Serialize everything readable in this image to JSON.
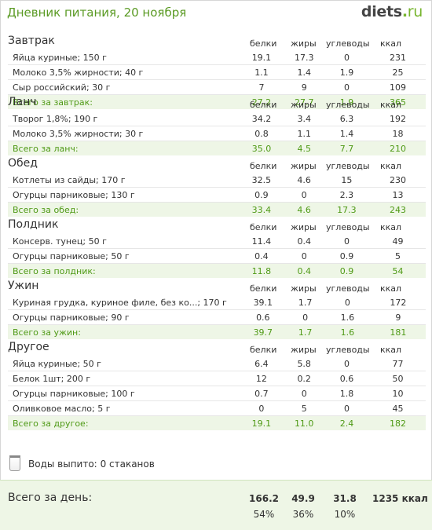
{
  "header": {
    "title": "Дневник питания, 20 ноября",
    "logo_name": "diets",
    "logo_dot": ".",
    "logo_tld": "ru"
  },
  "columns": [
    "белки",
    "жиры",
    "углеводы",
    "ккал"
  ],
  "meals": [
    {
      "title": "Завтрак",
      "items": [
        {
          "name": "Яйца куриные; 150 г",
          "protein": "19.1",
          "fat": "17.3",
          "carbs": "0",
          "kcal": "231"
        },
        {
          "name": "Молоко 3,5% жирности; 40 г",
          "protein": "1.1",
          "fat": "1.4",
          "carbs": "1.9",
          "kcal": "25"
        },
        {
          "name": "Сыр российский; 30 г",
          "protein": "7",
          "fat": "9",
          "carbs": "0",
          "kcal": "109"
        }
      ],
      "total": {
        "name": "Всего за завтрак:",
        "protein": "27.2",
        "fat": "27.7",
        "carbs": "1.9",
        "kcal": "365"
      }
    },
    {
      "title": "Ланч",
      "items": [
        {
          "name": "Творог 1,8%; 190 г",
          "protein": "34.2",
          "fat": "3.4",
          "carbs": "6.3",
          "kcal": "192"
        },
        {
          "name": "Молоко 3,5% жирности; 30 г",
          "protein": "0.8",
          "fat": "1.1",
          "carbs": "1.4",
          "kcal": "18"
        }
      ],
      "total": {
        "name": "Всего за ланч:",
        "protein": "35.0",
        "fat": "4.5",
        "carbs": "7.7",
        "kcal": "210"
      }
    },
    {
      "title": "Обед",
      "items": [
        {
          "name": "Котлеты из сайды; 170 г",
          "protein": "32.5",
          "fat": "4.6",
          "carbs": "15",
          "kcal": "230"
        },
        {
          "name": "Огурцы парниковые; 130 г",
          "protein": "0.9",
          "fat": "0",
          "carbs": "2.3",
          "kcal": "13"
        }
      ],
      "total": {
        "name": "Всего за обед:",
        "protein": "33.4",
        "fat": "4.6",
        "carbs": "17.3",
        "kcal": "243"
      }
    },
    {
      "title": "Полдник",
      "items": [
        {
          "name": "Консерв. тунец; 50 г",
          "protein": "11.4",
          "fat": "0.4",
          "carbs": "0",
          "kcal": "49"
        },
        {
          "name": "Огурцы парниковые; 50 г",
          "protein": "0.4",
          "fat": "0",
          "carbs": "0.9",
          "kcal": "5"
        }
      ],
      "total": {
        "name": "Всего за полдник:",
        "protein": "11.8",
        "fat": "0.4",
        "carbs": "0.9",
        "kcal": "54"
      }
    },
    {
      "title": "Ужин",
      "items": [
        {
          "name": "Куриная грудка, куриное филе, без ко...; 170 г",
          "protein": "39.1",
          "fat": "1.7",
          "carbs": "0",
          "kcal": "172"
        },
        {
          "name": "Огурцы парниковые; 90 г",
          "protein": "0.6",
          "fat": "0",
          "carbs": "1.6",
          "kcal": "9"
        }
      ],
      "total": {
        "name": "Всего за ужин:",
        "protein": "39.7",
        "fat": "1.7",
        "carbs": "1.6",
        "kcal": "181"
      }
    },
    {
      "title": "Другое",
      "items": [
        {
          "name": "Яйца куриные; 50 г",
          "protein": "6.4",
          "fat": "5.8",
          "carbs": "0",
          "kcal": "77"
        },
        {
          "name": "Белок 1шт; 200 г",
          "protein": "12",
          "fat": "0.2",
          "carbs": "0.6",
          "kcal": "50"
        },
        {
          "name": "Огурцы парниковые; 100 г",
          "protein": "0.7",
          "fat": "0",
          "carbs": "1.8",
          "kcal": "10"
        },
        {
          "name": "Оливковое масло; 5 г",
          "protein": "0",
          "fat": "5",
          "carbs": "0",
          "kcal": "45"
        }
      ],
      "total": {
        "name": "Всего за другое:",
        "protein": "19.1",
        "fat": "11.0",
        "carbs": "2.4",
        "kcal": "182"
      }
    }
  ],
  "water": {
    "label": "Воды выпито:",
    "value": "0 стаканов",
    "icon": "glass-icon"
  },
  "day": {
    "label": "Всего за день:",
    "protein": "166.2",
    "fat": "49.9",
    "carbs": "31.8",
    "kcal": "1235 ккал",
    "protein_pct": "54%",
    "fat_pct": "36%",
    "carbs_pct": "10%"
  },
  "colors": {
    "accent": "#5a9a23",
    "total_bg": "#eef6e6",
    "total_text": "#4f9a16"
  }
}
